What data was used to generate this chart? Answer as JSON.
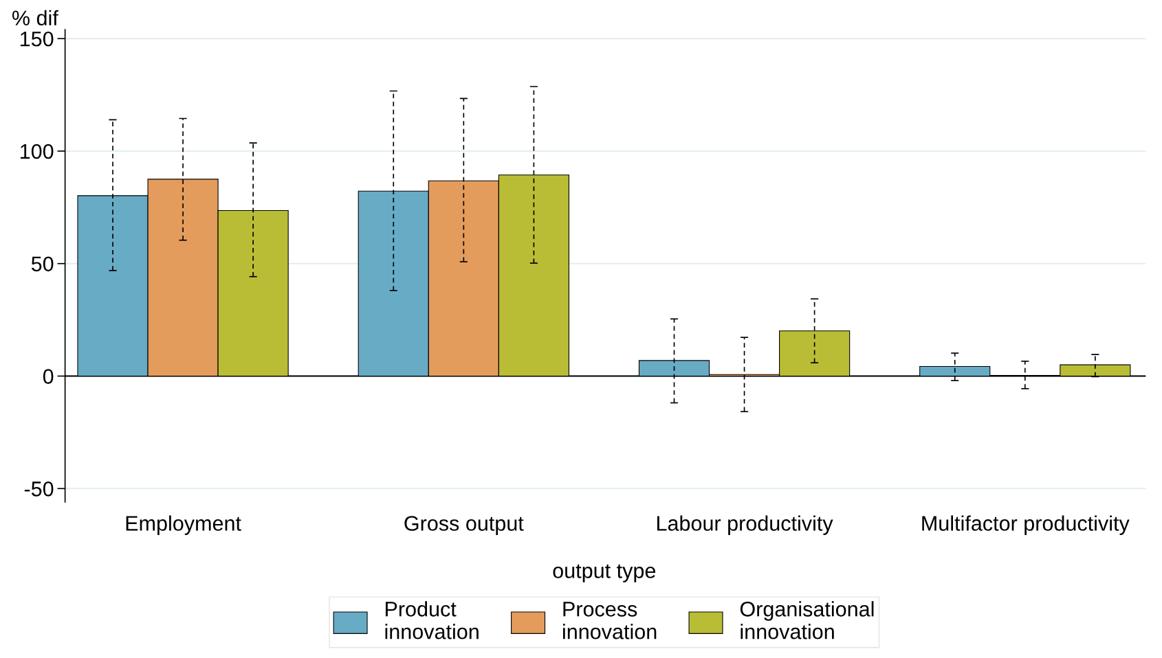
{
  "chart_data": {
    "type": "bar",
    "ylabel": "% dif",
    "xlabel": "output type",
    "categories": [
      "Employment",
      "Gross output",
      "Labour productivity",
      "Multifactor productivity"
    ],
    "series": [
      {
        "name": "Product\ninnovation",
        "color": "#67abc5",
        "values": [
          80.2,
          82.2,
          6.9,
          4.3
        ],
        "errors": [
          [
            46.9,
            113.9
          ],
          [
            38,
            126.7
          ],
          [
            -11.9,
            25.4
          ],
          [
            -2.0,
            10.2
          ]
        ]
      },
      {
        "name": "Process\ninnovation",
        "color": "#e39c5c",
        "values": [
          87.5,
          86.8,
          0.7,
          0.3
        ],
        "errors": [
          [
            60.4,
            114.5
          ],
          [
            50.8,
            123.4
          ],
          [
            -15.8,
            17.2
          ],
          [
            -5.6,
            6.6
          ]
        ]
      },
      {
        "name": "Organisational\ninnovation",
        "color": "#b9bd35",
        "values": [
          73.6,
          89.4,
          20.1,
          5.0
        ],
        "errors": [
          [
            44.2,
            103.6
          ],
          [
            50.2,
            128.7
          ],
          [
            5.9,
            34.3
          ],
          [
            -0.3,
            9.6
          ]
        ]
      }
    ],
    "ylim": [
      -56,
      154
    ],
    "yticks": [
      -50,
      0,
      50,
      100,
      150
    ],
    "grid": "y",
    "legend": "bottom",
    "ref_lines": [
      {
        "axis": "y",
        "value": 0,
        "color": "#000000"
      }
    ]
  }
}
